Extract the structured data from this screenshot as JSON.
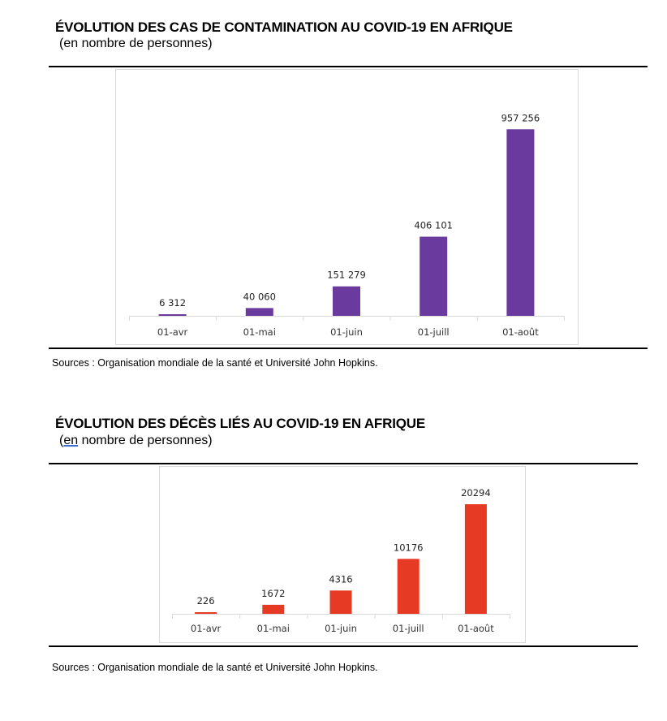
{
  "charts": [
    {
      "title": "ÉVOLUTION DES CAS DE CONTAMINATION AU COVID-19 EN AFRIQUE",
      "subtitle": "(en nombre de personnes)",
      "source": "Sources : Organisation mondiale de la santé et Université John Hopkins."
    },
    {
      "title": "ÉVOLUTION DES DÉCÈS LIÉS AU COVID-19 EN AFRIQUE",
      "subtitle_prefix": "(",
      "subtitle_underlined": "en",
      "subtitle_rest": " nombre de personnes)",
      "source": "Sources : Organisation mondiale de la santé et Université John Hopkins."
    }
  ],
  "chart_data": [
    {
      "type": "bar",
      "title": "ÉVOLUTION DES CAS DE CONTAMINATION AU COVID-19 EN AFRIQUE",
      "subtitle": "(en nombre de personnes)",
      "categories": [
        "01-avr",
        "01-mai",
        "01-juin",
        "01-juill",
        "01-août"
      ],
      "values": [
        6312,
        40060,
        151279,
        406101,
        957256
      ],
      "value_labels": [
        "6 312",
        "40 060",
        "151 279",
        "406 101",
        "957 256"
      ],
      "ylim": [
        0,
        1000000
      ],
      "color": "#6a3a9e",
      "grid": false,
      "legend": "none"
    },
    {
      "type": "bar",
      "title": "ÉVOLUTION DES DÉCÈS LIÉS AU COVID-19 EN AFRIQUE",
      "subtitle": "(en nombre de personnes)",
      "categories": [
        "01-avr",
        "01-mai",
        "01-juin",
        "01-juill",
        "01-août"
      ],
      "values": [
        226,
        1672,
        4316,
        10176,
        20294
      ],
      "value_labels": [
        "226",
        "1672",
        "4316",
        "10176",
        "20294"
      ],
      "ylim": [
        0,
        21500
      ],
      "color": "#e63a24",
      "grid": false,
      "legend": "none"
    }
  ]
}
